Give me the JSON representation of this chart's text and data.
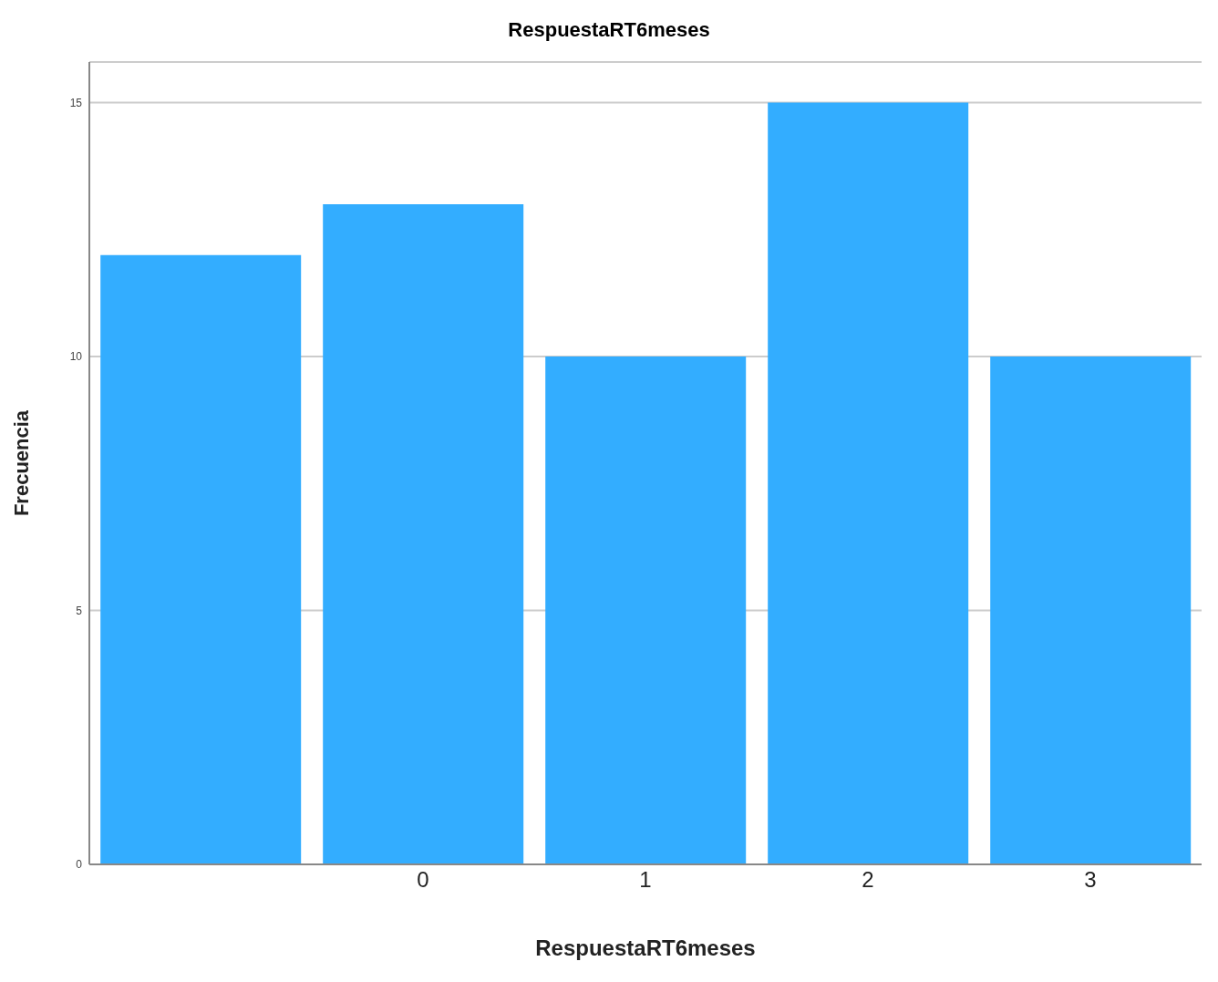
{
  "chart_data": {
    "type": "bar",
    "title": "RespuestaRT6meses",
    "xlabel": "RespuestaRT6meses",
    "ylabel": "Frecuencia",
    "categories": [
      null,
      "0",
      "1",
      "2",
      "3"
    ],
    "values": [
      12,
      13,
      10,
      15,
      10
    ],
    "color": "#33adff",
    "ylim": [
      0,
      15.8
    ],
    "yticks": [
      0,
      5,
      10,
      15
    ],
    "grid": "y"
  }
}
